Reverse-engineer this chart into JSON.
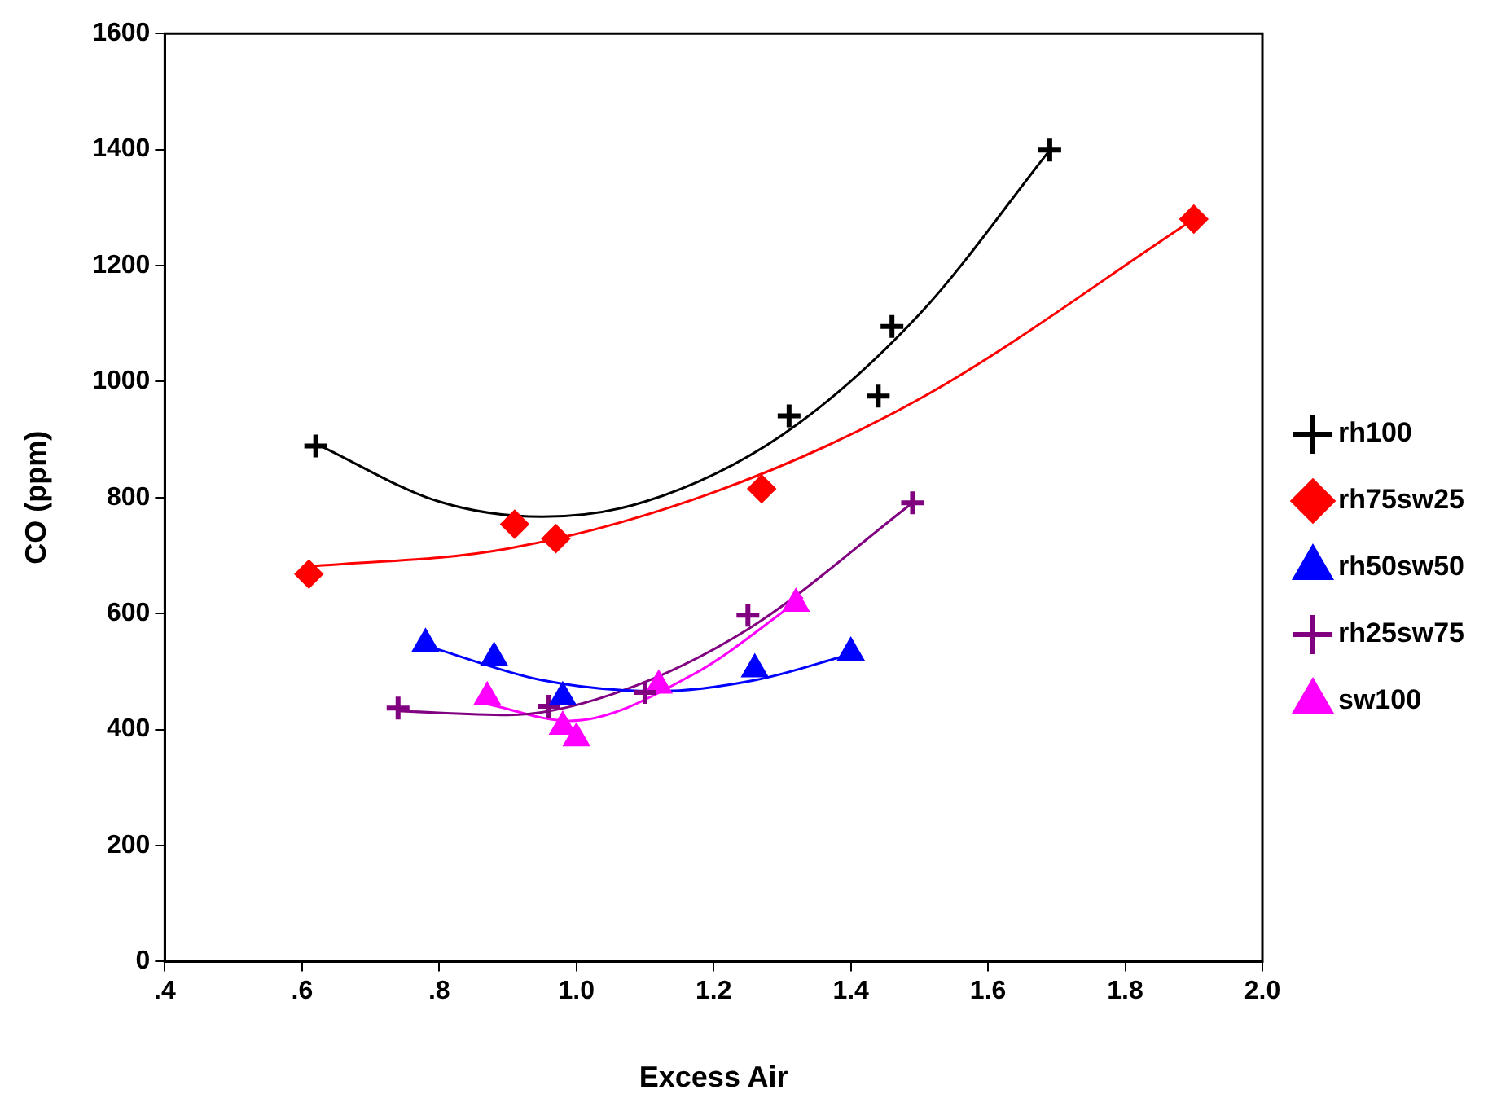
{
  "chart_data": {
    "type": "scatter",
    "xlabel": "Excess Air",
    "ylabel": "CO (ppm)",
    "xlim": [
      0.4,
      2.0
    ],
    "ylim": [
      0,
      1600
    ],
    "xticks": [
      {
        "value": 0.4,
        "label": ".4"
      },
      {
        "value": 0.6,
        "label": ".6"
      },
      {
        "value": 0.8,
        "label": ".8"
      },
      {
        "value": 1.0,
        "label": "1.0"
      },
      {
        "value": 1.2,
        "label": "1.2"
      },
      {
        "value": 1.4,
        "label": "1.4"
      },
      {
        "value": 1.6,
        "label": "1.6"
      },
      {
        "value": 1.8,
        "label": "1.8"
      },
      {
        "value": 2.0,
        "label": "2.0"
      }
    ],
    "yticks": [
      0,
      200,
      400,
      600,
      800,
      1000,
      1200,
      1400,
      1600
    ],
    "grid": false,
    "legend": "right",
    "series": [
      {
        "name": "rh100",
        "marker": "cross",
        "color": "#000000",
        "x": [
          0.62,
          1.31,
          1.44,
          1.46,
          1.69
        ],
        "values": [
          889,
          941,
          975,
          1095,
          1399
        ]
      },
      {
        "name": "rh75sw25",
        "marker": "diamond",
        "color": "#ff0000",
        "x": [
          0.61,
          0.91,
          0.97,
          1.27,
          1.9
        ],
        "values": [
          668,
          754,
          729,
          815,
          1280
        ]
      },
      {
        "name": "rh50sw50",
        "marker": "triangle",
        "color": "#0000ff",
        "x": [
          0.78,
          0.88,
          0.98,
          1.26,
          1.4
        ],
        "values": [
          548,
          524,
          456,
          504,
          533
        ]
      },
      {
        "name": "rh25sw75",
        "marker": "cross",
        "color": "#800080",
        "x": [
          0.74,
          0.96,
          1.1,
          1.25,
          1.49
        ],
        "values": [
          437,
          440,
          464,
          597,
          791
        ]
      },
      {
        "name": "sw100",
        "marker": "triangle",
        "color": "#ff00ff",
        "x": [
          0.87,
          0.98,
          1.0,
          1.12,
          1.32
        ],
        "values": [
          456,
          405,
          385,
          476,
          617
        ]
      },
      {
        "type": "line",
        "marker": "none",
        "color": "#000000",
        "x": [
          0.62,
          0.8,
          0.95,
          1.1,
          1.3,
          1.5,
          1.69
        ],
        "values": [
          893,
          793,
          767,
          793,
          908,
          1116,
          1399
        ]
      },
      {
        "type": "line",
        "marker": "none",
        "color": "#ff0000",
        "x": [
          0.6,
          0.9,
          1.2,
          1.5,
          1.9
        ],
        "values": [
          680,
          712,
          809,
          970,
          1280
        ]
      },
      {
        "type": "line",
        "marker": "none",
        "color": "#0000ff",
        "x": [
          0.78,
          0.95,
          1.12,
          1.26,
          1.4
        ],
        "values": [
          545,
          485,
          466,
          485,
          530
        ]
      },
      {
        "type": "line",
        "marker": "none",
        "color": "#800080",
        "x": [
          0.74,
          0.9,
          1.05,
          1.25,
          1.49
        ],
        "values": [
          432,
          425,
          460,
          573,
          791
        ]
      },
      {
        "type": "line",
        "marker": "none",
        "color": "#ff00ff",
        "x": [
          0.87,
          0.99,
          1.17,
          1.33
        ],
        "values": [
          444,
          415,
          495,
          628
        ]
      }
    ]
  }
}
